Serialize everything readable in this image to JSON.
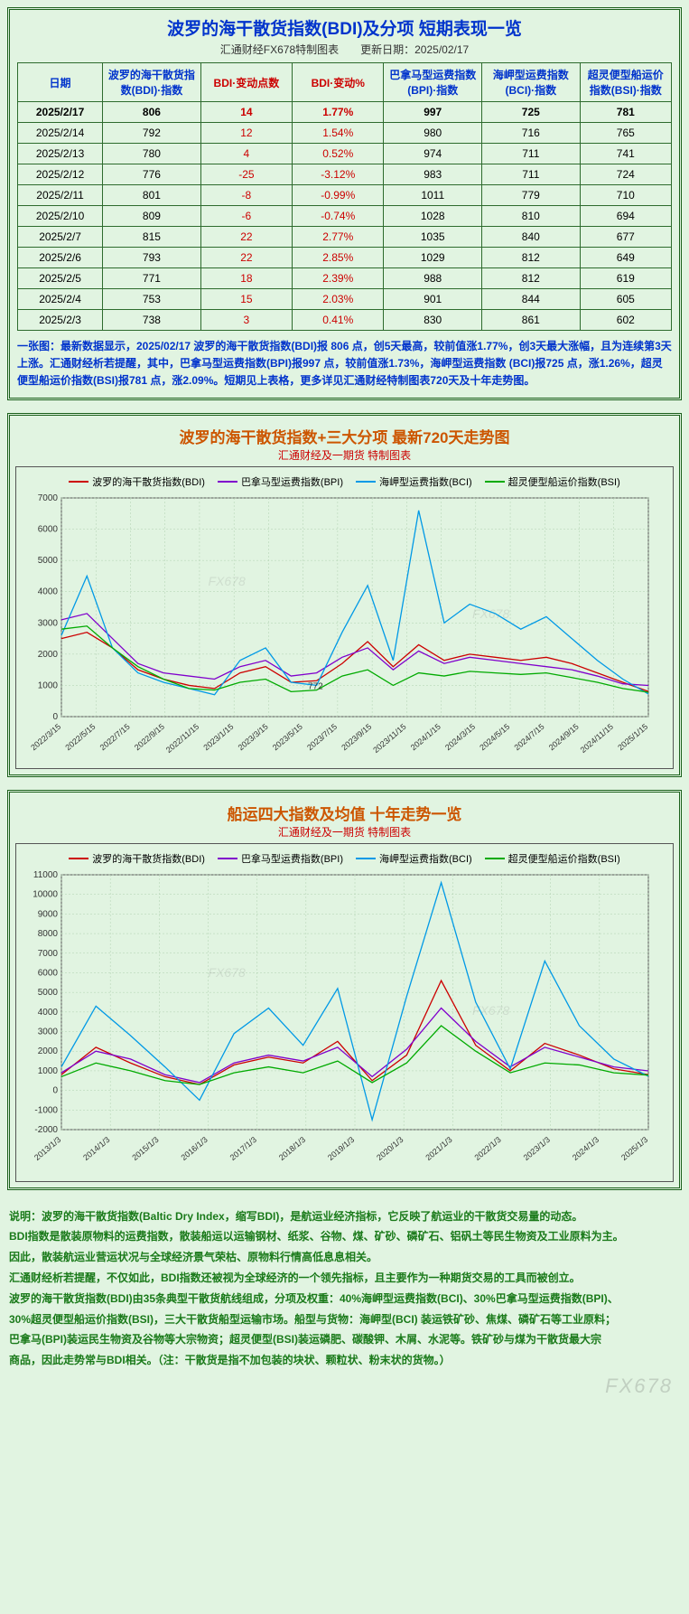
{
  "table_section": {
    "title": "波罗的海干散货指数(BDI)及分项 短期表现一览",
    "subtitle": "汇通财经FX678特制图表　　更新日期：2025/02/17",
    "columns": [
      {
        "label": "日期",
        "color": "blue",
        "width": "13%"
      },
      {
        "label": "波罗的海干散货指数(BDI)·指数",
        "color": "blue",
        "width": "15%"
      },
      {
        "label": "BDI·变动点数",
        "color": "red",
        "width": "14%"
      },
      {
        "label": "BDI·变动%",
        "color": "red",
        "width": "14%"
      },
      {
        "label": "巴拿马型运费指数(BPI)·指数",
        "color": "blue",
        "width": "15%"
      },
      {
        "label": "海岬型运费指数(BCI)·指数",
        "color": "blue",
        "width": "15%"
      },
      {
        "label": "超灵便型船运价指数(BSI)·指数",
        "color": "blue",
        "width": "14%"
      }
    ],
    "rows": [
      {
        "date": "2025/2/17",
        "bdi": "806",
        "chg": "14",
        "pct": "1.77%",
        "bpi": "997",
        "bci": "725",
        "bsi": "781",
        "bold": true
      },
      {
        "date": "2025/2/14",
        "bdi": "792",
        "chg": "12",
        "pct": "1.54%",
        "bpi": "980",
        "bci": "716",
        "bsi": "765"
      },
      {
        "date": "2025/2/13",
        "bdi": "780",
        "chg": "4",
        "pct": "0.52%",
        "bpi": "974",
        "bci": "711",
        "bsi": "741"
      },
      {
        "date": "2025/2/12",
        "bdi": "776",
        "chg": "-25",
        "pct": "-3.12%",
        "bpi": "983",
        "bci": "711",
        "bsi": "724"
      },
      {
        "date": "2025/2/11",
        "bdi": "801",
        "chg": "-8",
        "pct": "-0.99%",
        "bpi": "1011",
        "bci": "779",
        "bsi": "710"
      },
      {
        "date": "2025/2/10",
        "bdi": "809",
        "chg": "-6",
        "pct": "-0.74%",
        "bpi": "1028",
        "bci": "810",
        "bsi": "694"
      },
      {
        "date": "2025/2/7",
        "bdi": "815",
        "chg": "22",
        "pct": "2.77%",
        "bpi": "1035",
        "bci": "840",
        "bsi": "677"
      },
      {
        "date": "2025/2/6",
        "bdi": "793",
        "chg": "22",
        "pct": "2.85%",
        "bpi": "1029",
        "bci": "812",
        "bsi": "649"
      },
      {
        "date": "2025/2/5",
        "bdi": "771",
        "chg": "18",
        "pct": "2.39%",
        "bpi": "988",
        "bci": "812",
        "bsi": "619"
      },
      {
        "date": "2025/2/4",
        "bdi": "753",
        "chg": "15",
        "pct": "2.03%",
        "bpi": "901",
        "bci": "844",
        "bsi": "605"
      },
      {
        "date": "2025/2/3",
        "bdi": "738",
        "chg": "3",
        "pct": "0.41%",
        "bpi": "830",
        "bci": "861",
        "bsi": "602"
      }
    ],
    "footnote": "一张图：最新数据显示，2025/02/17 波罗的海干散货指数(BDI)报 806 点，创5天最高，较前值涨1.77%，创3天最大涨幅，且为连续第3天上涨。汇通财经析若提醒，其中，巴拿马型运费指数(BPI)报997 点，较前值涨1.73%，海岬型运费指数 (BCI)报725 点，涨1.26%，超灵便型船运价指数(BSI)报781 点，涨2.09%。短期见上表格，更多详见汇通财经特制图表720天及十年走势图。"
  },
  "chart1": {
    "title": "波罗的海干散货指数+三大分项 最新720天走势图",
    "subtitle": "汇通财经及一期货 特制图表",
    "legend_items": [
      {
        "label": "波罗的海干散货指数(BDI)",
        "color": "#cc0000"
      },
      {
        "label": "巴拿马型运费指数(BPI)",
        "color": "#8000cc"
      },
      {
        "label": "海岬型运费指数(BCI)",
        "color": "#0099e6"
      },
      {
        "label": "超灵便型船运价指数(BSI)",
        "color": "#00aa00"
      }
    ],
    "y_ticks": [
      0,
      1000,
      2000,
      3000,
      4000,
      5000,
      6000,
      7000
    ],
    "x_labels": [
      "2022/3/15",
      "2022/5/15",
      "2022/7/15",
      "2022/9/15",
      "2022/11/15",
      "2023/1/15",
      "2023/3/15",
      "2023/5/15",
      "2023/7/15",
      "2023/9/15",
      "2023/11/15",
      "2024/1/15",
      "2024/3/15",
      "2024/5/15",
      "2024/7/15",
      "2024/9/15",
      "2024/11/15",
      "2025/1/15"
    ],
    "ylim": [
      0,
      7000
    ],
    "label_772": "772",
    "watermark": "FX678",
    "plot_bg": "#e1f4e1",
    "grid_color": "#b0d0b0",
    "series": {
      "bdi": {
        "color": "#cc0000",
        "values": [
          2500,
          2700,
          2200,
          1500,
          1200,
          1000,
          900,
          1400,
          1600,
          1100,
          1150,
          1700,
          2400,
          1600,
          2300,
          1800,
          2000,
          1900,
          1800,
          1900,
          1700,
          1400,
          1100,
          806
        ]
      },
      "bpi": {
        "color": "#8000cc",
        "values": [
          3100,
          3300,
          2500,
          1700,
          1400,
          1300,
          1200,
          1600,
          1800,
          1300,
          1400,
          1900,
          2200,
          1500,
          2100,
          1700,
          1900,
          1800,
          1700,
          1600,
          1500,
          1300,
          1050,
          997
        ]
      },
      "bci": {
        "color": "#0099e6",
        "values": [
          2600,
          4500,
          2200,
          1400,
          1100,
          900,
          700,
          1800,
          2200,
          1100,
          1000,
          2700,
          4200,
          1800,
          6600,
          3000,
          3600,
          3300,
          2800,
          3200,
          2500,
          1800,
          1200,
          725
        ]
      },
      "bsi": {
        "color": "#00aa00",
        "values": [
          2800,
          2900,
          2200,
          1600,
          1200,
          900,
          850,
          1100,
          1200,
          800,
          850,
          1300,
          1500,
          1000,
          1400,
          1300,
          1450,
          1400,
          1350,
          1400,
          1250,
          1100,
          900,
          781
        ]
      }
    }
  },
  "chart2": {
    "title": "船运四大指数及均值 十年走势一览",
    "subtitle": "汇通财经及一期货 特制图表",
    "legend_items": [
      {
        "label": "波罗的海干散货指数(BDI)",
        "color": "#cc0000"
      },
      {
        "label": "巴拿马型运费指数(BPI)",
        "color": "#8000cc"
      },
      {
        "label": "海岬型运费指数(BCI)",
        "color": "#0099e6"
      },
      {
        "label": "超灵便型船运价指数(BSI)",
        "color": "#00aa00"
      }
    ],
    "y_ticks": [
      -2000,
      -1000,
      0,
      1000,
      2000,
      3000,
      4000,
      5000,
      6000,
      7000,
      8000,
      9000,
      10000,
      11000
    ],
    "x_labels": [
      "2013/1/3",
      "2014/1/3",
      "2015/1/3",
      "2016/1/3",
      "2017/1/3",
      "2018/1/3",
      "2019/1/3",
      "2020/1/3",
      "2021/1/3",
      "2022/1/3",
      "2023/1/3",
      "2024/1/3",
      "2025/1/3"
    ],
    "ylim": [
      -2000,
      11000
    ],
    "watermark": "FX678",
    "plot_bg": "#e1f4e1",
    "grid_color": "#b0d0b0",
    "series": {
      "bdi": {
        "color": "#cc0000",
        "values": [
          800,
          2200,
          1400,
          700,
          300,
          1300,
          1700,
          1400,
          2500,
          500,
          1800,
          5600,
          2300,
          1000,
          2400,
          1800,
          1100,
          806
        ]
      },
      "bpi": {
        "color": "#8000cc",
        "values": [
          900,
          2000,
          1600,
          800,
          400,
          1400,
          1800,
          1500,
          2200,
          700,
          2100,
          4200,
          2500,
          1200,
          2200,
          1700,
          1200,
          997
        ]
      },
      "bci": {
        "color": "#0099e6",
        "values": [
          1200,
          4300,
          2800,
          1200,
          -500,
          2900,
          4200,
          2300,
          5200,
          -1500,
          4800,
          10600,
          4500,
          1100,
          6600,
          3300,
          1600,
          725
        ]
      },
      "bsi": {
        "color": "#00aa00",
        "values": [
          700,
          1400,
          1000,
          500,
          300,
          900,
          1200,
          900,
          1500,
          400,
          1400,
          3300,
          2000,
          900,
          1400,
          1300,
          900,
          781
        ]
      }
    }
  },
  "footer": {
    "paragraphs": [
      "说明：波罗的海干散货指数(Baltic Dry Index，缩写BDI)，是航运业经济指标，它反映了航运业的干散货交易量的动态。",
      "BDI指数是散装原物料的运费指数，散装船运以运输钢材、纸浆、谷物、煤、矿砂、磷矿石、铝矾土等民生物资及工业原料为主。",
      "因此，散装航运业营运状况与全球经济景气荣枯、原物料行情高低息息相关。",
      "汇通财经析若提醒，不仅如此，BDI指数还被视为全球经济的一个领先指标，且主要作为一种期货交易的工具而被创立。",
      "波罗的海干散货指数(BDI)由35条典型干散货航线组成，分项及权重：40%海岬型运费指数(BCI)、30%巴拿马型运费指数(BPI)、",
      "30%超灵便型船运价指数(BSI)，三大干散货船型运输市场。船型与货物：海岬型(BCI) 装运铁矿砂、焦煤、磷矿石等工业原料；",
      "巴拿马(BPI)装运民生物资及谷物等大宗物资；超灵便型(BSI)装运磷肥、碳酸钾、木屑、水泥等。铁矿砂与煤为干散货最大宗",
      "商品，因此走势常与BDI相关。（注：干散货是指不加包装的块状、颗粒状、粉末状的货物。）"
    ]
  },
  "watermark_footer": "FX678"
}
